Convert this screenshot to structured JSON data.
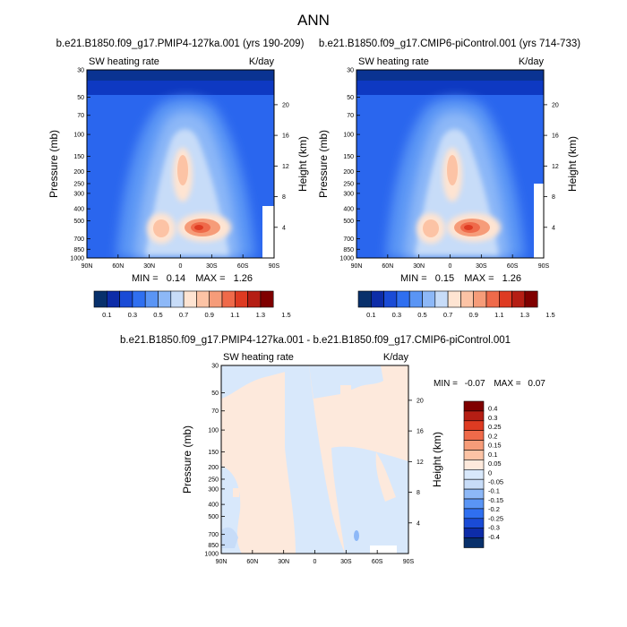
{
  "page_title": "ANN",
  "colors": {
    "scale_full": [
      "#08306b",
      "#0d2ca8",
      "#1a4bd6",
      "#2f6ff0",
      "#5a95f5",
      "#8db8f7",
      "#c7dcf8",
      "#fee4d2",
      "#fcc3a5",
      "#f69c79",
      "#ef6a4a",
      "#de3b22",
      "#b51e14",
      "#7f0000"
    ],
    "scale_diff": [
      "#08306b",
      "#0d2ca8",
      "#1a4bd6",
      "#2f6ff0",
      "#5a95f5",
      "#8db8f7",
      "#c7dcf8",
      "#d8e8fb",
      "#fde9dc",
      "#fcc3a5",
      "#f69c79",
      "#ef6a4a",
      "#de3b22",
      "#b51e14",
      "#7f0000"
    ]
  },
  "chart_data": [
    {
      "type": "heatmap",
      "title": "b.e21.B1850.f09_g17.PMIP4-127ka.001 (yrs 190-209)",
      "left_label": "SW heating rate",
      "units": "K/day",
      "ylabel": "Pressure (mb)",
      "ylabel_right": "Height (km)",
      "x_ticks": [
        "90N",
        "60N",
        "30N",
        "0",
        "30S",
        "60S",
        "90S"
      ],
      "y_ticks": [
        "30",
        "50",
        "70",
        "100",
        "150",
        "200",
        "250",
        "300",
        "400",
        "500",
        "700",
        "850",
        "1000"
      ],
      "height_ticks": [
        "20",
        "16",
        "12",
        "8",
        "4"
      ],
      "stats": {
        "min_label": "MIN =",
        "min": "0.14",
        "max_label": "MAX =",
        "max": "1.26"
      },
      "levels": [
        "0.1",
        "0.3",
        "0.5",
        "0.7",
        "0.9",
        "1.1",
        "1.3",
        "1.5"
      ]
    },
    {
      "type": "heatmap",
      "title": "b.e21.B1850.f09_g17.CMIP6-piControl.001 (yrs 714-733)",
      "left_label": "SW heating rate",
      "units": "K/day",
      "ylabel": "Pressure (mb)",
      "ylabel_right": "Height (km)",
      "x_ticks": [
        "90N",
        "60N",
        "30N",
        "0",
        "30S",
        "60S",
        "90S"
      ],
      "y_ticks": [
        "30",
        "50",
        "70",
        "100",
        "150",
        "200",
        "250",
        "300",
        "400",
        "500",
        "700",
        "850",
        "1000"
      ],
      "height_ticks": [
        "20",
        "16",
        "12",
        "8",
        "4"
      ],
      "stats": {
        "min_label": "MIN =",
        "min": "0.15",
        "max_label": "MAX =",
        "max": "1.26"
      },
      "levels": [
        "0.1",
        "0.3",
        "0.5",
        "0.7",
        "0.9",
        "1.1",
        "1.3",
        "1.5"
      ]
    },
    {
      "type": "heatmap",
      "title": "b.e21.B1850.f09_g17.PMIP4-127ka.001 - b.e21.B1850.f09_g17.CMIP6-piControl.001",
      "left_label": "SW heating rate",
      "units": "K/day",
      "ylabel": "Pressure (mb)",
      "ylabel_right": "Height (km)",
      "x_ticks": [
        "90N",
        "60N",
        "30N",
        "0",
        "30S",
        "60S",
        "90S"
      ],
      "y_ticks": [
        "30",
        "50",
        "70",
        "100",
        "150",
        "200",
        "250",
        "300",
        "400",
        "500",
        "700",
        "850",
        "1000"
      ],
      "height_ticks": [
        "20",
        "16",
        "12",
        "8",
        "4"
      ],
      "stats": {
        "min_label": "MIN =",
        "min": "-0.07",
        "max_label": "MAX =",
        "max": "0.07"
      },
      "levels": [
        "0.4",
        "0.3",
        "0.25",
        "0.2",
        "0.15",
        "0.1",
        "0.05",
        "0",
        "-0.05",
        "-0.1",
        "-0.15",
        "-0.2",
        "-0.25",
        "-0.3",
        "-0.4"
      ]
    }
  ]
}
